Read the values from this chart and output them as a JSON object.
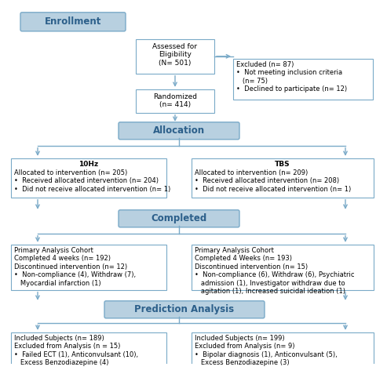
{
  "background_color": "#ffffff",
  "header_box_color": "#b8d0e0",
  "header_box_edge": "#7aaac8",
  "header_text_color": "#2c5f8a",
  "white_box_edge": "#7aaac8",
  "arrow_color": "#7aaac8",
  "font_size": 6.5,
  "header_font_size": 8.5,
  "enrollment_label": "Enrollment",
  "allocation_label": "Allocation",
  "completed_label": "Completed",
  "prediction_label": "Prediction Analysis",
  "eligibility_text": "Assessed for\nEligibility\n(N= 501)",
  "excluded_text": "Excluded (n= 87)\n•  Not meeting inclusion criteria\n   (n= 75)\n•  Declined to participate (n= 12)",
  "randomized_text": "Randomized\n(n= 414)",
  "hz10_title": "10Hz",
  "hz10_text": "Allocated to intervention (n= 205)\n•  Received allocated intervention (n= 204)\n•  Did not receive allocated intervention (n= 1)",
  "tbs_title": "TBS",
  "tbs_text": "Allocated to intervention (n= 209)\n•  Received allocated intervention (n= 208)\n•  Did not receive allocated intervention (n= 1)",
  "completed_left_text": "Primary Analysis Cohort\nCompleted 4 weeks (n= 192)\nDiscontinued intervention (n= 12)\n•  Non-compliance (4), Withdraw (7),\n   Myocardial infarction (1)",
  "completed_right_text": "Primary Analysis Cohort\nCompleted 4 Weeks (n= 193)\nDiscontinued intervention (n= 15)\n•  Non-compliance (6), Withdraw (6), Psychiatric\n   admission (1), Investigator withdraw due to\n   agitation (1), Increased suicidal ideation (1)",
  "prediction_left_text": "Included Subjects (n= 189)\nExcluded from Analysis (n = 15)\n•  Failed ECT (1), Anticonvulsant (10),\n   Excess Benzodiazepine (4)",
  "prediction_right_text": "Included Subjects (n= 199)\nExcluded from Analysis (n= 9)\n•  Bipolar diagnosis (1), Anticonvulsant (5),\n   Excess Benzodiazepine (3)"
}
